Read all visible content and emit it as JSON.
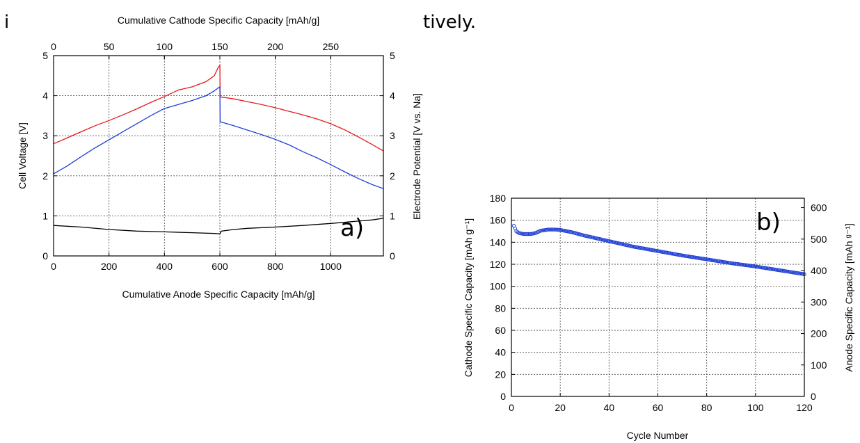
{
  "page": {
    "left_fragment": "i",
    "right_fragment": "tively."
  },
  "chart_data": [
    {
      "type": "line",
      "panel_label": "a)",
      "xlabel": "Cumulative Anode Specific Capacity [mAh/g]",
      "x2label": "Cumulative Cathode Specific Capacity [mAh/g]",
      "ylabel": "Cell Voltage [V]",
      "y2label": "Electrode Potential [V vs. Na]",
      "xlim": [
        0,
        1190
      ],
      "x2lim": [
        0,
        297.5
      ],
      "ylim": [
        0,
        5
      ],
      "y2lim": [
        0,
        5
      ],
      "xticks": [
        "0",
        "200",
        "400",
        "600",
        "800",
        "1000"
      ],
      "x2ticks": [
        "0",
        "50",
        "100",
        "150",
        "200",
        "250"
      ],
      "yticks": [
        "0",
        "1",
        "2",
        "3",
        "4",
        "5"
      ],
      "y2ticks": [
        "0",
        "1",
        "2",
        "3",
        "4",
        "5"
      ],
      "grid": true,
      "series": [
        {
          "color": "#e41a1c",
          "x": [
            0,
            50,
            100,
            150,
            200,
            250,
            300,
            350,
            400,
            450,
            500,
            550,
            580,
            595,
            600,
            601,
            650,
            700,
            750,
            800,
            850,
            900,
            950,
            1000,
            1050,
            1100,
            1150,
            1190
          ],
          "y": [
            2.8,
            2.95,
            3.1,
            3.25,
            3.38,
            3.52,
            3.67,
            3.83,
            3.98,
            4.14,
            4.22,
            4.35,
            4.5,
            4.72,
            4.75,
            3.97,
            3.92,
            3.85,
            3.78,
            3.7,
            3.61,
            3.52,
            3.42,
            3.3,
            3.15,
            2.97,
            2.78,
            2.62
          ]
        },
        {
          "color": "#1f3fd6",
          "x": [
            0,
            50,
            100,
            150,
            200,
            250,
            300,
            350,
            400,
            450,
            500,
            550,
            580,
            595,
            600,
            601,
            650,
            700,
            750,
            800,
            850,
            900,
            950,
            1000,
            1050,
            1100,
            1150,
            1190
          ],
          "y": [
            2.05,
            2.25,
            2.48,
            2.7,
            2.9,
            3.1,
            3.3,
            3.5,
            3.68,
            3.78,
            3.88,
            4.0,
            4.12,
            4.2,
            4.22,
            3.35,
            3.25,
            3.14,
            3.03,
            2.91,
            2.77,
            2.6,
            2.45,
            2.28,
            2.1,
            1.93,
            1.78,
            1.68
          ]
        },
        {
          "color": "#000000",
          "x": [
            0,
            100,
            200,
            300,
            400,
            500,
            580,
            600,
            605,
            650,
            700,
            800,
            900,
            1000,
            1100,
            1150,
            1190
          ],
          "y": [
            0.76,
            0.72,
            0.66,
            0.62,
            0.6,
            0.58,
            0.56,
            0.55,
            0.62,
            0.66,
            0.69,
            0.72,
            0.76,
            0.81,
            0.87,
            0.9,
            0.94
          ]
        }
      ]
    },
    {
      "type": "scatter",
      "panel_label": "b)",
      "xlabel": "Cycle Number",
      "ylabel": "Cathode Specific Capacity [mAh g⁻¹]",
      "y2label": "Anode Specific Capacity [mAh ᵍ⁻¹]",
      "xlim": [
        0,
        120
      ],
      "ylim": [
        0,
        180
      ],
      "y2lim": [
        0,
        630
      ],
      "xticks": [
        "0",
        "20",
        "40",
        "60",
        "80",
        "100",
        "120"
      ],
      "yticks": [
        "0",
        "20",
        "40",
        "60",
        "80",
        "100",
        "120",
        "140",
        "160",
        "180"
      ],
      "y2ticks": [
        "0",
        "100",
        "200",
        "300",
        "400",
        "500",
        "600"
      ],
      "grid": true,
      "marker_color": "#1f3fd6",
      "key_points": {
        "x": [
          1,
          2,
          3,
          5,
          8,
          10,
          12,
          15,
          18,
          20,
          25,
          30,
          40,
          50,
          60,
          70,
          80,
          90,
          100,
          110,
          120
        ],
        "y": [
          155,
          150,
          148.5,
          147.5,
          147.5,
          148.5,
          150.5,
          151.5,
          151.5,
          151.2,
          149,
          146,
          141,
          136,
          132,
          128,
          124.5,
          121,
          118,
          114.5,
          111
        ]
      }
    }
  ]
}
